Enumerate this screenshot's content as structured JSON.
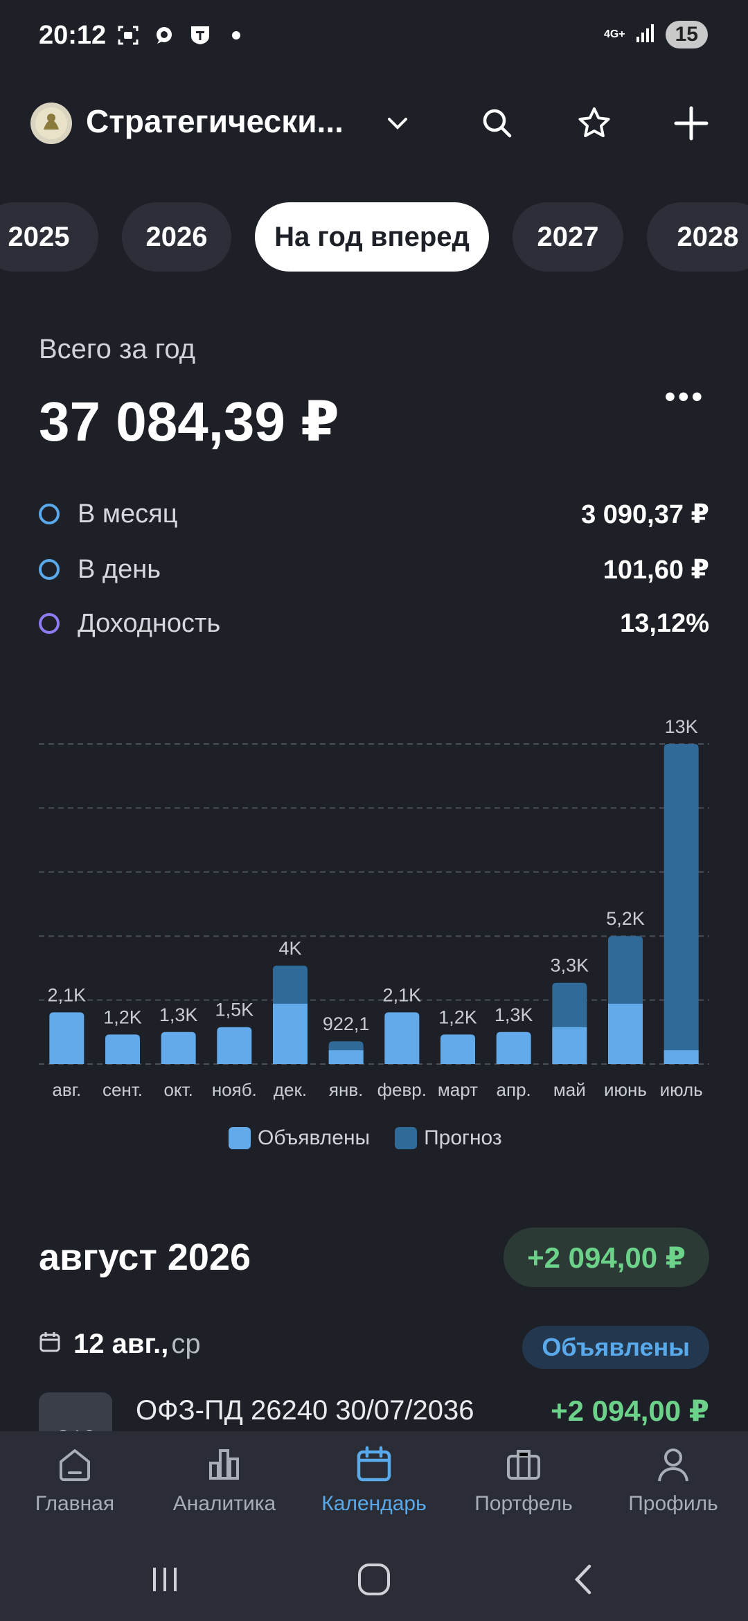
{
  "status_bar": {
    "time": "20:12",
    "network": "4G+",
    "battery": "15",
    "left_icons": [
      "screenshot-icon",
      "chat-icon",
      "t-bank-icon",
      "dot-icon"
    ]
  },
  "header": {
    "title": "Стратегически...",
    "icons": [
      "chevron-down-icon",
      "search-icon",
      "star-icon",
      "plus-icon"
    ]
  },
  "year_tabs": [
    {
      "label": "2025",
      "active": false
    },
    {
      "label": "2026",
      "active": false
    },
    {
      "label": "На год вперед",
      "active": true
    },
    {
      "label": "2027",
      "active": false
    },
    {
      "label": "2028",
      "active": false
    }
  ],
  "summary": {
    "total_label": "Всего за год",
    "total_value": "37 084,39 ₽",
    "metrics": [
      {
        "label": "В месяц",
        "value": "3 090,37 ₽",
        "color": "#5aa9ea"
      },
      {
        "label": "В день",
        "value": "101,60 ₽",
        "color": "#5aa9ea"
      },
      {
        "label": "Доходность",
        "value": "13,12%",
        "color": "#8b7cf0"
      }
    ]
  },
  "chart_data": {
    "type": "bar",
    "stacked": true,
    "categories": [
      "авг.",
      "сент.",
      "окт.",
      "нояб.",
      "дек.",
      "янв.",
      "февр.",
      "март",
      "апр.",
      "май",
      "июнь",
      "июль"
    ],
    "labels": [
      "2,1K",
      "1,2K",
      "1,3K",
      "1,5K",
      "4K",
      "922,1",
      "2,1K",
      "1,2K",
      "1,3K",
      "3,3K",
      "5,2K",
      "13K"
    ],
    "series": [
      {
        "name": "Объявлены",
        "color": "#62aaea",
        "values": [
          2100,
          1200,
          1300,
          1500,
          2450,
          560,
          2100,
          1200,
          1300,
          1500,
          2450,
          560
        ]
      },
      {
        "name": "Прогноз",
        "color": "#2f6a98",
        "values": [
          0,
          0,
          0,
          0,
          1550,
          362,
          0,
          0,
          0,
          1800,
          2750,
          12440
        ]
      }
    ],
    "ylim": [
      0,
      13000
    ],
    "grid": true,
    "legend": "bottom"
  },
  "month": {
    "title": "август 2026",
    "total": "+2 094,00 ₽",
    "date": "12 авг.,",
    "weekday": "ср",
    "status": "Объявлены",
    "bond_thumb": "ОФЗ",
    "bond_name": "ОФЗ-ПД 26240 30/07/2036",
    "bond_amount": "+2 094,00 ₽"
  },
  "nav": [
    {
      "label": "Главная",
      "icon": "home-icon",
      "active": false
    },
    {
      "label": "Аналитика",
      "icon": "analytics-icon",
      "active": false
    },
    {
      "label": "Календарь",
      "icon": "calendar-icon",
      "active": true
    },
    {
      "label": "Портфель",
      "icon": "briefcase-icon",
      "active": false
    },
    {
      "label": "Профиль",
      "icon": "profile-icon",
      "active": false
    }
  ]
}
